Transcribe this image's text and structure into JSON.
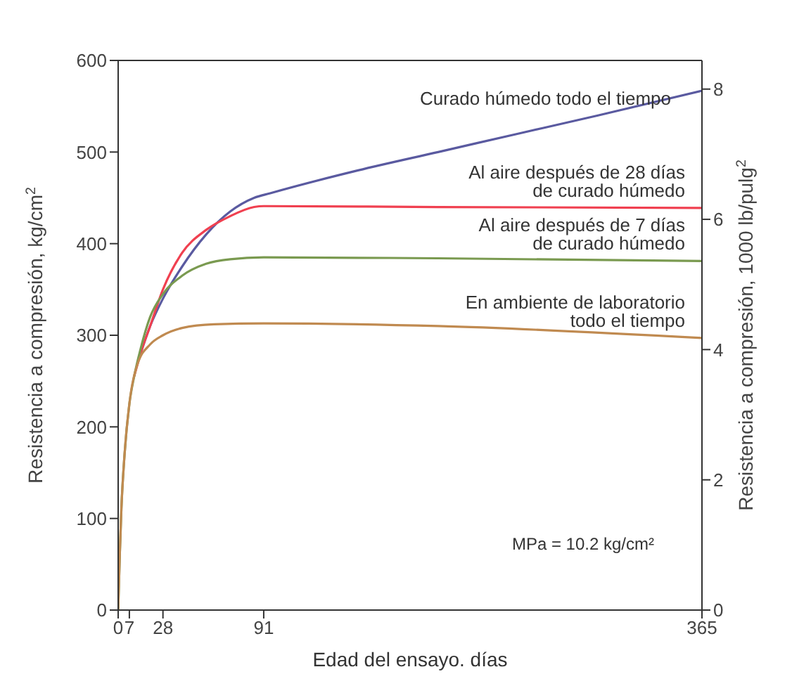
{
  "chart_data": {
    "type": "line",
    "xlabel": "Edad del ensayo. días",
    "ylabel": "Resistencia a compresión, kg/cm$^{2}$",
    "y2label": "Resistencia a compresión, 1000 lb/pulg$^{2}$",
    "xlim": [
      0,
      365
    ],
    "xticks": [
      0,
      7,
      28,
      91,
      365
    ],
    "ylim": [
      0,
      600
    ],
    "yticks": [
      0,
      100,
      200,
      300,
      400,
      500,
      600
    ],
    "y2lim": [
      0,
      8.44
    ],
    "y2ticks": [
      0,
      2,
      4,
      6,
      8
    ],
    "annotations": [
      "MPa = 10.2 kg/cm²"
    ],
    "series": [
      {
        "name": "Curado húmedo todo el tiempo",
        "color": "#5a5aa0",
        "x": [
          14,
          20,
          28,
          40,
          55,
          70,
          85,
          95,
          150,
          200,
          250,
          300,
          365
        ],
        "values": [
          280,
          310,
          340,
          375,
          410,
          435,
          450,
          455,
          480,
          500,
          520,
          540,
          567
        ]
      },
      {
        "name": "Al aire después de 28 días\nde curado húmedo",
        "color": "#f04050",
        "x": [
          10,
          14,
          20,
          28,
          40,
          55,
          70,
          85,
          91,
          200,
          365
        ],
        "values": [
          255,
          280,
          310,
          350,
          390,
          415,
          430,
          440,
          441,
          440,
          439
        ]
      },
      {
        "name": "Al aire después de 7 días\nde curado húmedo",
        "color": "#7a9a50",
        "x": [
          0,
          1,
          2,
          4,
          7,
          10,
          14,
          20,
          28,
          40,
          55,
          70,
          91,
          200,
          365
        ],
        "values": [
          0,
          60,
          110,
          170,
          225,
          255,
          285,
          320,
          345,
          365,
          378,
          383,
          385,
          384,
          381
        ]
      },
      {
        "name": "En ambiente de laboratorio\ntodo el tiempo",
        "color": "#c08a50",
        "x": [
          0,
          1,
          2,
          4,
          7,
          12,
          20,
          28,
          40,
          60,
          91,
          200,
          365
        ],
        "values": [
          0,
          60,
          110,
          170,
          225,
          268,
          290,
          300,
          308,
          312,
          313,
          310,
          297
        ]
      }
    ]
  }
}
